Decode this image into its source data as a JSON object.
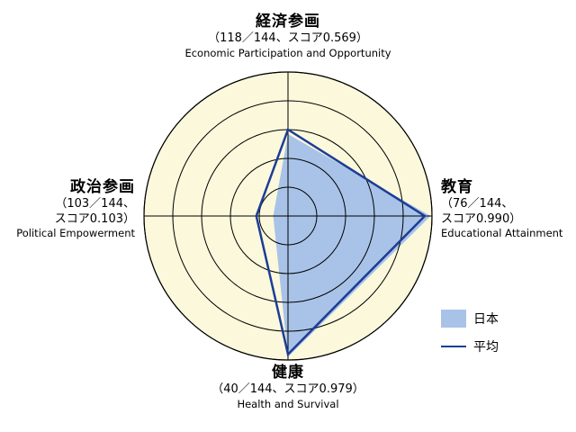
{
  "chart_data": {
    "type": "radar",
    "axes": [
      {
        "label_jp": "経済参画",
        "rank_text": "（118／144、スコア0.569）",
        "label_en": "Economic Participation and Opportunity"
      },
      {
        "label_jp": "教育",
        "rank_text_1": "（76／144、",
        "rank_text_2": "スコア0.990）",
        "label_en": "Educational Attainment"
      },
      {
        "label_jp": "健康",
        "rank_text": "（40／144、スコア0.979）",
        "label_en": "Health and Survival"
      },
      {
        "label_jp": "政治参画",
        "rank_text_1": "（103／144、",
        "rank_text_2": "スコア0.103）",
        "label_en": "Political Empowerment"
      }
    ],
    "range": [
      0,
      1
    ],
    "ring_count": 5,
    "series": [
      {
        "name": "日本",
        "values": [
          0.569,
          0.99,
          0.979,
          0.103
        ],
        "style": "filled",
        "color": "#a9c3e8"
      },
      {
        "name": "平均",
        "values": [
          0.6,
          0.95,
          0.96,
          0.22
        ],
        "style": "line",
        "color": "#1c3d96"
      }
    ],
    "background_color": "#fbf8dc",
    "grid_color": "#000000"
  }
}
